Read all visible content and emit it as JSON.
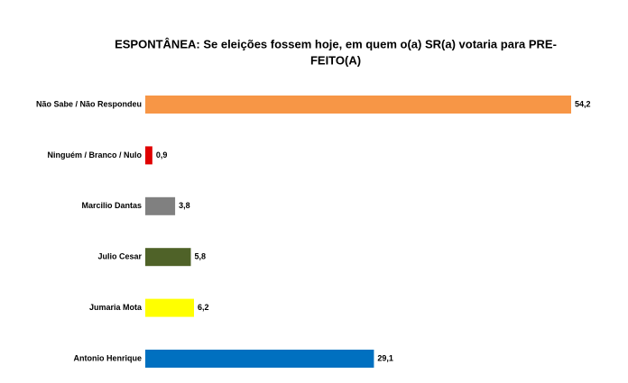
{
  "chart_data": {
    "type": "bar",
    "orientation": "horizontal",
    "title": [
      "ESPONTÂNEA: Se eleições fossem hoje, em quem o(a) SR(a) votaria para PRE-",
      "FEITO(A)"
    ],
    "categories": [
      "Não Sabe / Não Respondeu",
      "Ninguém / Branco / Nulo",
      "Marcilio Dantas",
      "Julio Cesar",
      "Jumaria Mota",
      "Antonio Henrique"
    ],
    "values": [
      54.2,
      0.9,
      3.8,
      5.8,
      6.2,
      29.1
    ],
    "value_labels": [
      "54,2",
      "0,9",
      "3,8",
      "5,8",
      "6,2",
      "29,1"
    ],
    "colors": [
      "#f79646",
      "#e00000",
      "#808080",
      "#4f6228",
      "#ffff00",
      "#0070c0"
    ]
  }
}
